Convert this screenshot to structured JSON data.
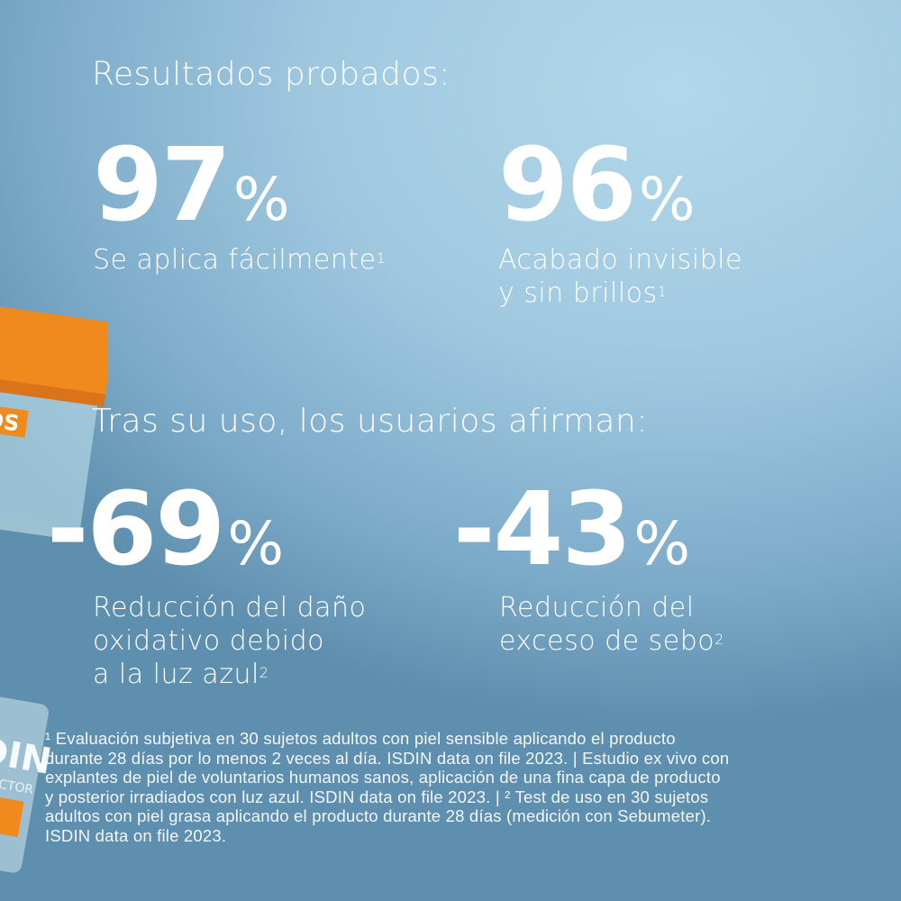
{
  "colors": {
    "background_top": "#b3d7ea",
    "background_bottom": "#5f8fae",
    "jar_lid": "#f08a1c",
    "text": "#ffffff"
  },
  "section1": {
    "heading": "Resultados probados:",
    "stats": [
      {
        "value": "97",
        "unit": "%",
        "label_lines": [
          "Se aplica fácilmente"
        ],
        "footnote": "1"
      },
      {
        "value": "96",
        "unit": "%",
        "label_lines": [
          "Acabado invisible",
          "y sin brillos"
        ],
        "footnote": "1"
      }
    ]
  },
  "section2": {
    "heading": "Tras su uso, los usuarios afirman:",
    "stats": [
      {
        "value": "-69",
        "unit": "%",
        "label_lines": [
          "Reducción del daño",
          "oxidativo debido",
          "a la luz azul"
        ],
        "footnote": "2"
      },
      {
        "value": "-43",
        "unit": "%",
        "label_lines": [
          "Reducción del",
          "exceso de sebo"
        ],
        "footnote": "2"
      }
    ]
  },
  "footnote_lines": [
    "¹ Evaluación subjetiva en 30 sujetos adultos con piel sensible aplicando el producto",
    "durante 28 días por lo menos 2 veces al día. ISDIN data on file 2023. | Estudio ex vivo con",
    "explantes de piel de voluntarios humanos sanos, aplicación de una fina capa de producto",
    "y posterior irradiados con luz azul. ISDIN data on file 2023. | ² Test de uso en 30 sujetos",
    "adultos con piel grasa aplicando el producto durante 28 días (medición con Sebumeter).",
    "ISDIN data on file 2023."
  ],
  "product_jar_text": [
    "OS",
    "ISDIN",
    "PROTECTOR"
  ]
}
